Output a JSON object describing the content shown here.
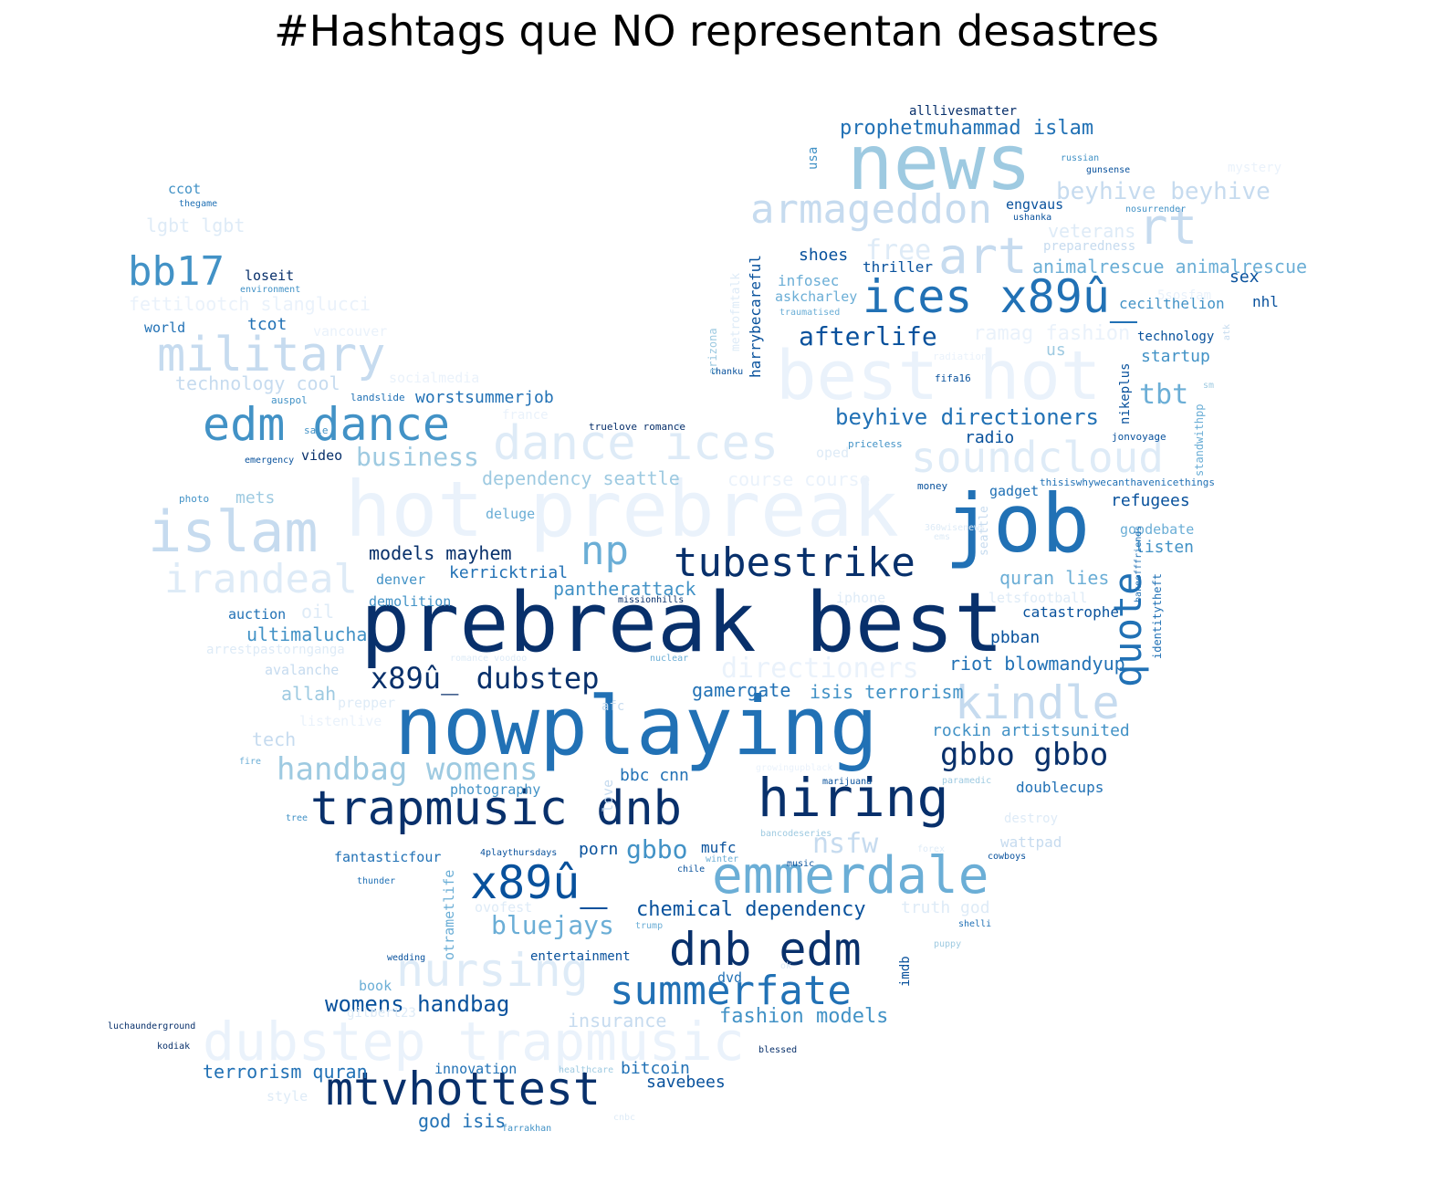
{
  "title": "#Hashtags que NO representan desastres",
  "palette": {
    "c1": "#08306b",
    "c2": "#08519c",
    "c3": "#2171b5",
    "c4": "#4292c6",
    "c5": "#6baed6",
    "c6": "#9ecae1",
    "c7": "#c6dbef",
    "c8": "#deebf7",
    "c9": "#eaf2fb"
  },
  "words": [
    {
      "text": "prebreak best",
      "color": "c1"
    },
    {
      "text": "nowplaying",
      "color": "c3"
    },
    {
      "text": "job",
      "color": "c3"
    },
    {
      "text": "hot prebreak",
      "color": "c9"
    },
    {
      "text": "news",
      "color": "c6"
    },
    {
      "text": "best hot",
      "color": "c9"
    },
    {
      "text": "hiring",
      "color": "c1"
    },
    {
      "text": "trapmusic dnb",
      "color": "c1"
    },
    {
      "text": "dubstep trapmusic",
      "color": "c9"
    },
    {
      "text": "emmerdale",
      "color": "c5"
    },
    {
      "text": "islam",
      "color": "c7"
    },
    {
      "text": "ices x89û_",
      "color": "c3"
    },
    {
      "text": "dance ices",
      "color": "c8"
    },
    {
      "text": "edm dance",
      "color": "c4"
    },
    {
      "text": "dnb edm",
      "color": "c1"
    },
    {
      "text": "mtvhottest",
      "color": "c1"
    },
    {
      "text": "x89û_",
      "color": "c2"
    },
    {
      "text": "nursing",
      "color": "c8"
    },
    {
      "text": "military",
      "color": "c7"
    },
    {
      "text": "armageddon",
      "color": "c7"
    },
    {
      "text": "kindle",
      "color": "c7"
    },
    {
      "text": "soundcloud",
      "color": "c8"
    },
    {
      "text": "irandeal",
      "color": "c8"
    },
    {
      "text": "tubestrike",
      "color": "c1"
    },
    {
      "text": "summerfate",
      "color": "c3"
    },
    {
      "text": "art",
      "color": "c7"
    },
    {
      "text": "rt",
      "color": "c7"
    },
    {
      "text": "bb17",
      "color": "c4"
    },
    {
      "text": "np",
      "color": "c5"
    },
    {
      "text": "quote",
      "color": "c3"
    },
    {
      "text": "x89û_ dubstep",
      "color": "c1"
    },
    {
      "text": "handbag womens",
      "color": "c6"
    },
    {
      "text": "gbbo gbbo",
      "color": "c1"
    },
    {
      "text": "afterlife",
      "color": "c2"
    },
    {
      "text": "directioners",
      "color": "c9"
    },
    {
      "text": "nsfw",
      "color": "c7"
    },
    {
      "text": "gbbo",
      "color": "c4"
    },
    {
      "text": "bluejays",
      "color": "c5"
    },
    {
      "text": "business",
      "color": "c6"
    },
    {
      "text": "tbt",
      "color": "c5"
    },
    {
      "text": "beyhive directioners",
      "color": "c3"
    },
    {
      "text": "womens handbag",
      "color": "c2"
    },
    {
      "text": "chemical dependency",
      "color": "c2"
    },
    {
      "text": "beyhive beyhive",
      "color": "c7"
    },
    {
      "text": "prophetmuhammad islam",
      "color": "c3"
    },
    {
      "text": "free",
      "color": "c8"
    },
    {
      "text": "animalrescue animalrescue",
      "color": "c5"
    },
    {
      "text": "fashion models",
      "color": "c4"
    },
    {
      "text": "terrorism quran",
      "color": "c3"
    },
    {
      "text": "riot blowmandyup",
      "color": "c3"
    },
    {
      "text": "rockin artistsunited",
      "color": "c4"
    },
    {
      "text": "ramag fashion",
      "color": "c9"
    },
    {
      "text": "truth god",
      "color": "c8"
    },
    {
      "text": "fettilootch slanglucci",
      "color": "c9"
    },
    {
      "text": "technology cool",
      "color": "c7"
    },
    {
      "text": "dependency seattle",
      "color": "c6"
    },
    {
      "text": "course course",
      "color": "c9"
    },
    {
      "text": "models mayhem",
      "color": "c1"
    },
    {
      "text": "isis terrorism",
      "color": "c4"
    },
    {
      "text": "gamergate",
      "color": "c3"
    },
    {
      "text": "pantherattack",
      "color": "c4"
    },
    {
      "text": "kerricktrial",
      "color": "c3"
    },
    {
      "text": "quran lies",
      "color": "c5"
    },
    {
      "text": "ultimalucha",
      "color": "c4"
    },
    {
      "text": "worstsummerjob",
      "color": "c3"
    },
    {
      "text": "lgbt lgbt",
      "color": "c8"
    },
    {
      "text": "god isis",
      "color": "c3"
    },
    {
      "text": "savebees",
      "color": "c2"
    },
    {
      "text": "bitcoin",
      "color": "c3"
    },
    {
      "text": "insurance",
      "color": "c7"
    },
    {
      "text": "veterans",
      "color": "c8"
    },
    {
      "text": "refugees",
      "color": "c2"
    },
    {
      "text": "listen",
      "color": "c4"
    },
    {
      "text": "startup",
      "color": "c4"
    },
    {
      "text": "radio",
      "color": "c2"
    },
    {
      "text": "shoes",
      "color": "c2"
    },
    {
      "text": "thriller",
      "color": "c2"
    },
    {
      "text": "pbban",
      "color": "c2"
    },
    {
      "text": "catastrophe",
      "color": "c2"
    },
    {
      "text": "bbc cnn",
      "color": "c3"
    },
    {
      "text": "doublecups",
      "color": "c3"
    },
    {
      "text": "allah",
      "color": "c6"
    },
    {
      "text": "tech",
      "color": "c7"
    },
    {
      "text": "mets",
      "color": "c6"
    },
    {
      "text": "tcot",
      "color": "c3"
    },
    {
      "text": "sex",
      "color": "c2"
    },
    {
      "text": "us",
      "color": "c6"
    },
    {
      "text": "nhl",
      "color": "c2"
    },
    {
      "text": "infosec",
      "color": "c5"
    },
    {
      "text": "askcharley",
      "color": "c5"
    },
    {
      "text": "cecilthelion",
      "color": "c4"
    },
    {
      "text": "technology",
      "color": "c2"
    },
    {
      "text": "gadget",
      "color": "c3"
    },
    {
      "text": "wattpad",
      "color": "c7"
    },
    {
      "text": "porn",
      "color": "c2"
    },
    {
      "text": "mufc",
      "color": "c2"
    },
    {
      "text": "photography",
      "color": "c4"
    },
    {
      "text": "oil",
      "color": "c8"
    },
    {
      "text": "auction",
      "color": "c3"
    },
    {
      "text": "denver",
      "color": "c4"
    },
    {
      "text": "demolition",
      "color": "c4"
    },
    {
      "text": "avalanche",
      "color": "c7"
    },
    {
      "text": "prepper",
      "color": "c8"
    },
    {
      "text": "video",
      "color": "c1"
    },
    {
      "text": "world",
      "color": "c3"
    },
    {
      "text": "loseit",
      "color": "c1"
    },
    {
      "text": "vancouver",
      "color": "c9"
    },
    {
      "text": "ccot",
      "color": "c4"
    },
    {
      "text": "gopdebate",
      "color": "c5"
    },
    {
      "text": "letsfootball",
      "color": "c8"
    },
    {
      "text": "iphone",
      "color": "c8"
    },
    {
      "text": "entertainment",
      "color": "c2"
    },
    {
      "text": "fantasticfour",
      "color": "c3"
    },
    {
      "text": "innovation",
      "color": "c3"
    },
    {
      "text": "book",
      "color": "c5"
    },
    {
      "text": "dvd",
      "color": "c3"
    },
    {
      "text": "ovofest",
      "color": "c8"
    },
    {
      "text": "deluge",
      "color": "c5"
    },
    {
      "text": "oped",
      "color": "c8"
    },
    {
      "text": "engvaus",
      "color": "c2"
    },
    {
      "text": "preparedness",
      "color": "c7"
    },
    {
      "text": "alllivesmatter",
      "color": "c1"
    },
    {
      "text": "mystery",
      "color": "c9"
    },
    {
      "text": "gilbert23",
      "color": "c8"
    },
    {
      "text": "style",
      "color": "c8"
    },
    {
      "text": "listenlive",
      "color": "c9"
    },
    {
      "text": "socialmedia",
      "color": "c9"
    },
    {
      "text": "arrestpastornganga",
      "color": "c8"
    },
    {
      "text": "radiation",
      "color": "c9"
    },
    {
      "text": "fifa16",
      "color": "c2"
    },
    {
      "text": "5sosfam",
      "color": "c9"
    },
    {
      "text": "france",
      "color": "c9"
    },
    {
      "text": "truelove romance",
      "color": "c1"
    },
    {
      "text": "priceless",
      "color": "c4"
    },
    {
      "text": "jonvoyage",
      "color": "c2"
    },
    {
      "text": "thisiswhywecanthavenicethings",
      "color": "c3"
    },
    {
      "text": "money",
      "color": "c2"
    },
    {
      "text": "landslide",
      "color": "c3"
    },
    {
      "text": "auspol",
      "color": "c4"
    },
    {
      "text": "sale",
      "color": "c4"
    },
    {
      "text": "emergency",
      "color": "c2"
    },
    {
      "text": "photo",
      "color": "c4"
    },
    {
      "text": "thegame",
      "color": "c3"
    },
    {
      "text": "environment",
      "color": "c4"
    },
    {
      "text": "russian",
      "color": "c4"
    },
    {
      "text": "gunsense",
      "color": "c2"
    },
    {
      "text": "nosurrender",
      "color": "c4"
    },
    {
      "text": "ushanka",
      "color": "c2"
    },
    {
      "text": "thanku",
      "color": "c2"
    },
    {
      "text": "traumatised",
      "color": "c5"
    },
    {
      "text": "missionhills",
      "color": "c1"
    },
    {
      "text": "romance voodoo",
      "color": "c8"
    },
    {
      "text": "nuclear",
      "color": "c5"
    },
    {
      "text": "afc",
      "color": "c7"
    },
    {
      "text": "marijuana",
      "color": "c2"
    },
    {
      "text": "paramedic",
      "color": "c6"
    },
    {
      "text": "growingupblack",
      "color": "c9"
    },
    {
      "text": "bancodeseries",
      "color": "c6"
    },
    {
      "text": "4playthursdays",
      "color": "c2"
    },
    {
      "text": "winter",
      "color": "c5"
    },
    {
      "text": "music",
      "color": "c2"
    },
    {
      "text": "chile",
      "color": "c2"
    },
    {
      "text": "forex",
      "color": "c8"
    },
    {
      "text": "cowboys",
      "color": "c2"
    },
    {
      "text": "thunder",
      "color": "c3"
    },
    {
      "text": "trump",
      "color": "c5"
    },
    {
      "text": "shelli",
      "color": "c3"
    },
    {
      "text": "wedding",
      "color": "c2"
    },
    {
      "text": "puppy",
      "color": "c6"
    },
    {
      "text": "ok",
      "color": "c8"
    },
    {
      "text": "luchaunderground",
      "color": "c1"
    },
    {
      "text": "kodiak",
      "color": "c1"
    },
    {
      "text": "blessed",
      "color": "c1"
    },
    {
      "text": "healthcare",
      "color": "c6"
    },
    {
      "text": "farrakhan",
      "color": "c4"
    },
    {
      "text": "cnbc",
      "color": "c8"
    },
    {
      "text": "tree",
      "color": "c4"
    },
    {
      "text": "fire",
      "color": "c5"
    },
    {
      "text": "360wisenews",
      "color": "c8"
    },
    {
      "text": "ems",
      "color": "c8"
    },
    {
      "text": "destroy",
      "color": "c8"
    },
    {
      "text": "usa",
      "color": "c4"
    },
    {
      "text": "harrybecareful",
      "color": "c2"
    },
    {
      "text": "metrofmtalk",
      "color": "c8"
    },
    {
      "text": "arizona",
      "color": "c6"
    },
    {
      "text": "otrametlife",
      "color": "c5"
    },
    {
      "text": "love",
      "color": "c7"
    },
    {
      "text": "imdb",
      "color": "c2"
    },
    {
      "text": "nikeplus",
      "color": "c2"
    },
    {
      "text": "bakeofffriends",
      "color": "c3"
    },
    {
      "text": "identitytheft",
      "color": "c3"
    },
    {
      "text": "standwithpp",
      "color": "c5"
    },
    {
      "text": "seattle",
      "color": "c7"
    },
    {
      "text": "atk",
      "color": "c7"
    },
    {
      "text": "sm",
      "color": "c6"
    }
  ]
}
